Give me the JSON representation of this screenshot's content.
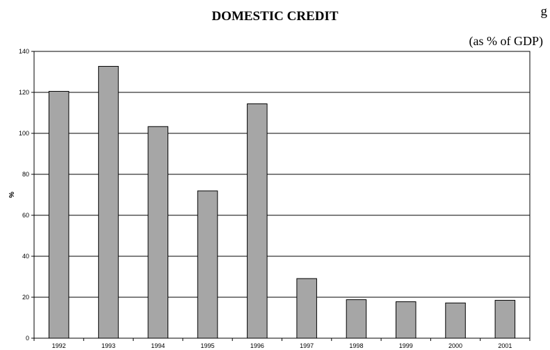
{
  "header": {
    "corner_fragment": "g",
    "title": "DOMESTIC CREDIT",
    "subtitle": "(as % of GDP)"
  },
  "chart_data": {
    "type": "bar",
    "title": "DOMESTIC CREDIT",
    "subtitle": "(as % of GDP)",
    "xlabel": "",
    "ylabel": "%",
    "categories": [
      "1992",
      "1993",
      "1994",
      "1995",
      "1996",
      "1997",
      "1998",
      "1999",
      "2000",
      "2001"
    ],
    "values": [
      120.5,
      132.7,
      103.3,
      71.9,
      114.4,
      29.1,
      18.8,
      17.8,
      17.2,
      18.5
    ],
    "ylim": [
      0,
      140
    ],
    "yticks": [
      0,
      20,
      40,
      60,
      80,
      100,
      120,
      140
    ],
    "grid": true,
    "bar_color": "#a6a6a6",
    "legend": "none"
  }
}
